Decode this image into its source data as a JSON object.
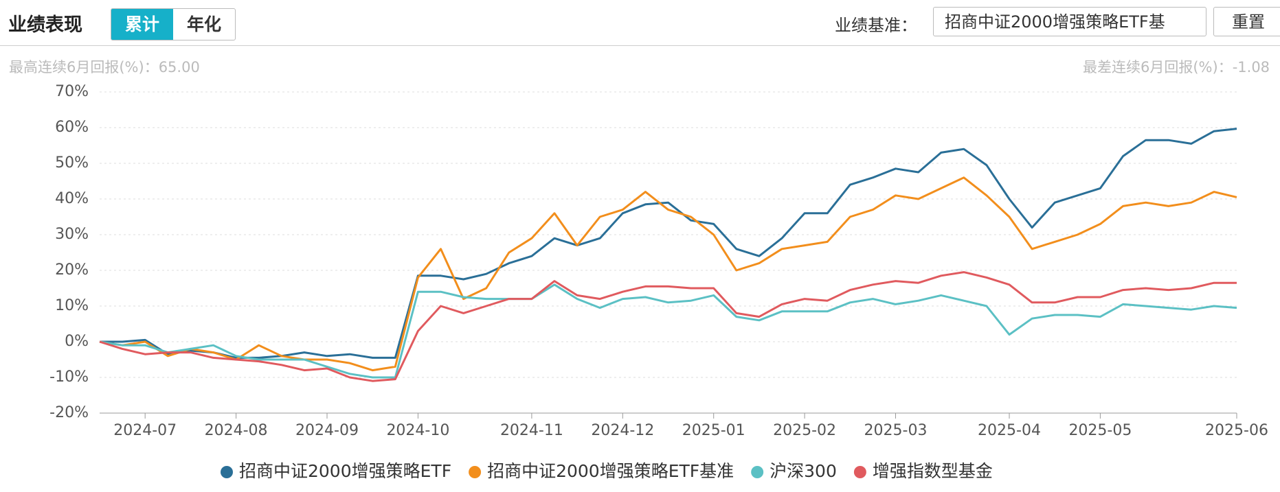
{
  "header": {
    "title": "业绩表现",
    "tabs": [
      "累计",
      "年化"
    ],
    "benchmark_label": "业绩基准：",
    "benchmark_value": "招商中证2000增强策略ETF基",
    "reset": "重置"
  },
  "stats": {
    "best": "最高连续6月回报(%)：65.00",
    "worst": "最差连续6月回报(%)：-1.08"
  },
  "chart_data": {
    "type": "line",
    "categories": [
      null,
      null,
      "2024-07",
      null,
      null,
      null,
      "2024-08",
      null,
      null,
      null,
      "2024-09",
      null,
      null,
      null,
      "2024-10",
      null,
      null,
      null,
      null,
      "2024-11",
      null,
      null,
      null,
      "2024-12",
      null,
      null,
      null,
      "2025-01",
      null,
      null,
      null,
      "2025-02",
      null,
      null,
      null,
      "2025-03",
      null,
      null,
      null,
      null,
      "2025-04",
      null,
      null,
      null,
      "2025-05",
      null,
      null,
      null,
      null,
      null,
      "2025-06"
    ],
    "series": [
      {
        "name": "招商中证2000增强策略ETF",
        "color": "#2a6f97",
        "values": [
          0,
          0,
          0.5,
          -3.5,
          -2.5,
          -3,
          -4.5,
          -4.5,
          -4,
          -3,
          -4,
          -3.5,
          -4.5,
          -4.5,
          18.5,
          18.5,
          17.5,
          19,
          22,
          24,
          29,
          27,
          29,
          36,
          38.5,
          39,
          34,
          33,
          26,
          24,
          29,
          36,
          36,
          44,
          46,
          48.5,
          47.5,
          53,
          54,
          49.5,
          40,
          32,
          39,
          41,
          43,
          52,
          56.5,
          56.5,
          55.5,
          59,
          59.7
        ]
      },
      {
        "name": "招商中证2000增强策略ETF基准",
        "color": "#f28e1c",
        "values": [
          0,
          -1,
          0,
          -4,
          -2,
          -3,
          -5,
          -1,
          -4,
          -5,
          -5,
          -6,
          -8,
          -7,
          18,
          26,
          12,
          15,
          25,
          29,
          36,
          27,
          35,
          37,
          42,
          37,
          35,
          30,
          20,
          22,
          26,
          27,
          28,
          35,
          37,
          41,
          40,
          43,
          46,
          41,
          35,
          26,
          28,
          30,
          33,
          38,
          39,
          38,
          39,
          42,
          40.5
        ]
      },
      {
        "name": "沪深300",
        "color": "#5bc0c4",
        "values": [
          0,
          -1,
          -1,
          -3,
          -2,
          -1,
          -4,
          -5,
          -5,
          -5,
          -7,
          -9,
          -10,
          -10,
          14,
          14,
          12.5,
          12,
          12,
          12,
          16,
          12,
          9.5,
          12,
          12.5,
          11,
          11.5,
          13,
          7,
          6,
          8.5,
          8.5,
          8.5,
          11,
          12,
          10.5,
          11.5,
          13,
          11.5,
          10,
          2,
          6.5,
          7.5,
          7.5,
          7,
          10.5,
          10,
          9.5,
          9,
          10,
          9.5
        ]
      },
      {
        "name": "增强指数型基金",
        "color": "#e05a5e",
        "values": [
          0,
          -2,
          -3.5,
          -3,
          -3,
          -4.5,
          -5,
          -5.5,
          -6.5,
          -8,
          -7.5,
          -10,
          -11,
          -10.5,
          3,
          10,
          8,
          10,
          12,
          12,
          17,
          13,
          12,
          14,
          15.5,
          15.5,
          15,
          15,
          8,
          7,
          10.5,
          12,
          11.5,
          14.5,
          16,
          17,
          16.5,
          18.5,
          19.5,
          18,
          16,
          11,
          11,
          12.5,
          12.5,
          14.5,
          15,
          14.5,
          15,
          16.5,
          16.5
        ]
      }
    ],
    "ylim": [
      -20,
      70
    ],
    "yticks": [
      {
        "value": -20,
        "label": "-20%"
      },
      {
        "value": -10,
        "label": "-10%"
      },
      {
        "value": 0,
        "label": "0%"
      },
      {
        "value": 10,
        "label": "10%"
      },
      {
        "value": 20,
        "label": "20%"
      },
      {
        "value": 30,
        "label": "30%"
      },
      {
        "value": 40,
        "label": "40%"
      },
      {
        "value": 50,
        "label": "50%"
      },
      {
        "value": 60,
        "label": "60%"
      },
      {
        "value": 70,
        "label": "70%"
      }
    ],
    "grid": true,
    "legend": "bottom"
  }
}
